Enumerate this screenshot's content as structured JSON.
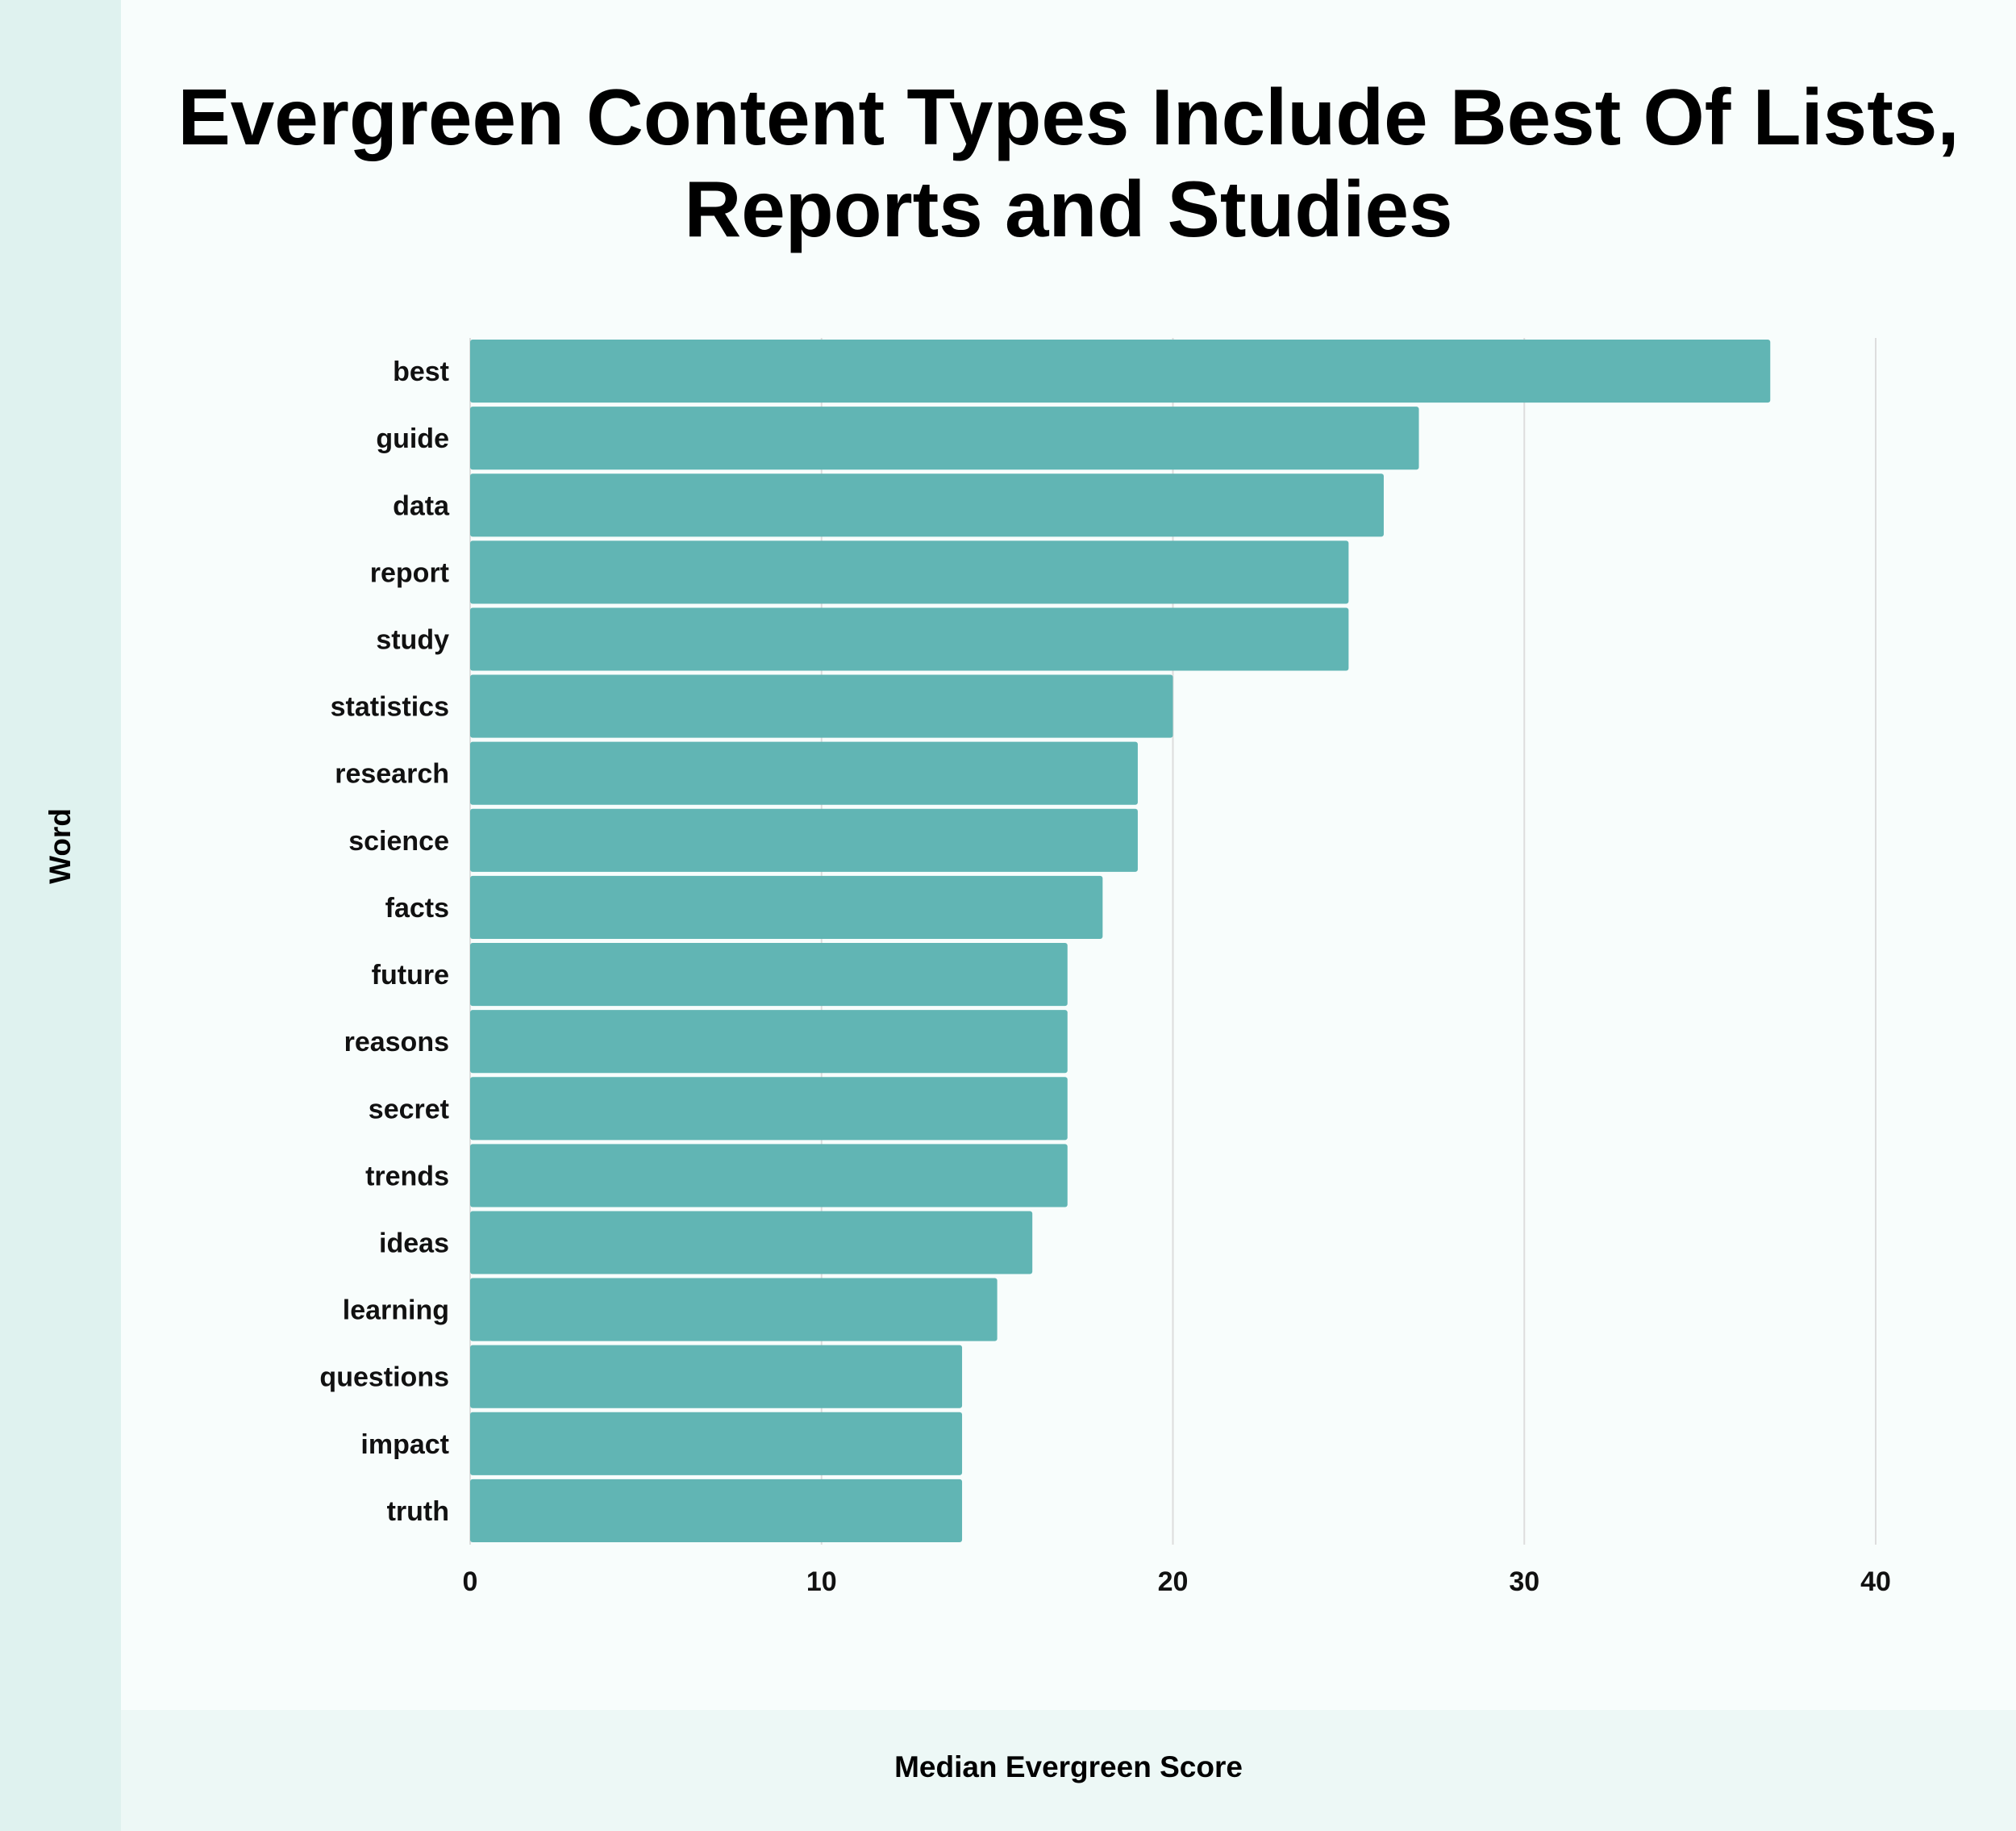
{
  "chart_data": {
    "type": "bar",
    "orientation": "horizontal",
    "title": "Evergreen Content Types Include Best Of Lists, Reports and Studies",
    "xlabel": "Median Evergreen Score",
    "ylabel": "Word",
    "categories": [
      "best",
      "guide",
      "data",
      "report",
      "study",
      "statistics",
      "research",
      "science",
      "facts",
      "future",
      "reasons",
      "secret",
      "trends",
      "ideas",
      "learning",
      "questions",
      "impact",
      "truth"
    ],
    "values": [
      37,
      27,
      26,
      25,
      25,
      20,
      19,
      19,
      18,
      17,
      17,
      17,
      17,
      16,
      15,
      14,
      14,
      14
    ],
    "xlim": [
      0,
      40
    ],
    "xticks": [
      0,
      10,
      20,
      30,
      40
    ],
    "grid": true,
    "legend": "none",
    "colors": {
      "bar": "#61b5b4",
      "grid": "#dddddd",
      "background": "#f8fdfc",
      "side_panel": "#dff2ef",
      "bottom_panel": "#edf8f6"
    }
  }
}
